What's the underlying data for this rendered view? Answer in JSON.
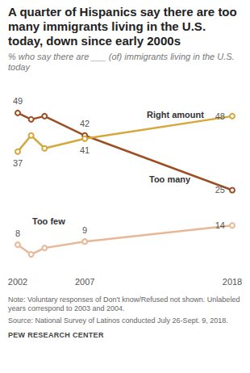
{
  "chart_data": {
    "type": "line",
    "title": "A quarter of Hispanics say there are too many immigrants living in the U.S. today, down since early 2000s",
    "subtitle": "% who say there are ___ (of) immigrants living in the U.S. today",
    "note": "Note: Voluntary responses of Don't know/Refused not shown. Unlabeled years correspond to 2003 and 2004.",
    "source": "Source: National Survey of Latinos conducted July 26-Sept. 9, 2018.",
    "credit": "PEW RESEARCH CENTER",
    "x": [
      2002,
      2003,
      2004,
      2007,
      2018
    ],
    "xlim": [
      2002,
      2018
    ],
    "xticks": [
      2002,
      2007,
      2018
    ],
    "ylim": [
      0,
      55
    ],
    "tick_labels": "x",
    "grid": false,
    "data_labels": true,
    "marker": "open_circle",
    "series": [
      {
        "name": "Too many",
        "color": "#9c4f24",
        "values": [
          49,
          47,
          48,
          42,
          25
        ],
        "value_labels": [
          "49",
          null,
          null,
          "42",
          "25"
        ]
      },
      {
        "name": "Right amount",
        "color": "#d6a73a",
        "values": [
          37,
          42,
          38,
          41,
          48
        ],
        "value_labels": [
          "37",
          null,
          null,
          "41",
          "48"
        ]
      },
      {
        "name": "Too few",
        "color": "#e8b795",
        "values": [
          8,
          5,
          7,
          9,
          14
        ],
        "value_labels": [
          "8",
          null,
          null,
          "9",
          "14"
        ]
      }
    ]
  }
}
